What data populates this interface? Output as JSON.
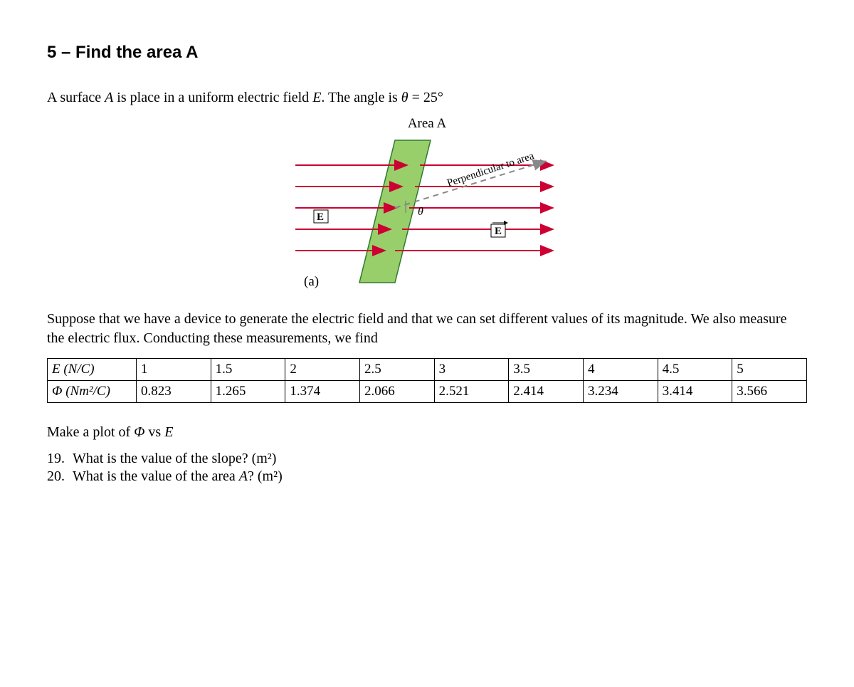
{
  "title": "5 – Find the area A",
  "intro_html": "A surface <span class='ital'>A</span> is place in a uniform electric field <span class='ital'>E</span>. The angle is <span class='ital'>θ</span> = 25°",
  "figure": {
    "caption": "Area  A",
    "label_perp": "Perpendicular to area",
    "label_theta": "θ",
    "label_E_left": "E",
    "label_E_right": "E",
    "subfig_label": "(a)",
    "colors": {
      "area_fill": "#98cf6a",
      "area_stroke": "#2f7a2f",
      "field_line": "#cc0033",
      "dash": "#888888",
      "text": "#000000"
    }
  },
  "desc_html": "Suppose that we have a device to generate the electric field and that we can set different values of its magnitude. We also measure the electric flux. Conducting these measurements, we find",
  "table": {
    "row1_header": "E (N/C)",
    "row2_header": "Φ (Nm²/C)",
    "E": [
      "1",
      "1.5",
      "2",
      "2.5",
      "3",
      "3.5",
      "4",
      "4.5",
      "5"
    ],
    "Phi": [
      "0.823",
      "1.265",
      "1.374",
      "2.066",
      "2.521",
      "2.414",
      "3.234",
      "3.414",
      "3.566"
    ]
  },
  "plot_line_html": "Make a plot of <span class='ital'>Φ</span> vs <span class='ital'>E</span>",
  "questions": {
    "q19": "What is the value of the slope?  (m²)",
    "q20_html": "What is the value of the area <span class='ital'>A</span>? (m²)"
  }
}
